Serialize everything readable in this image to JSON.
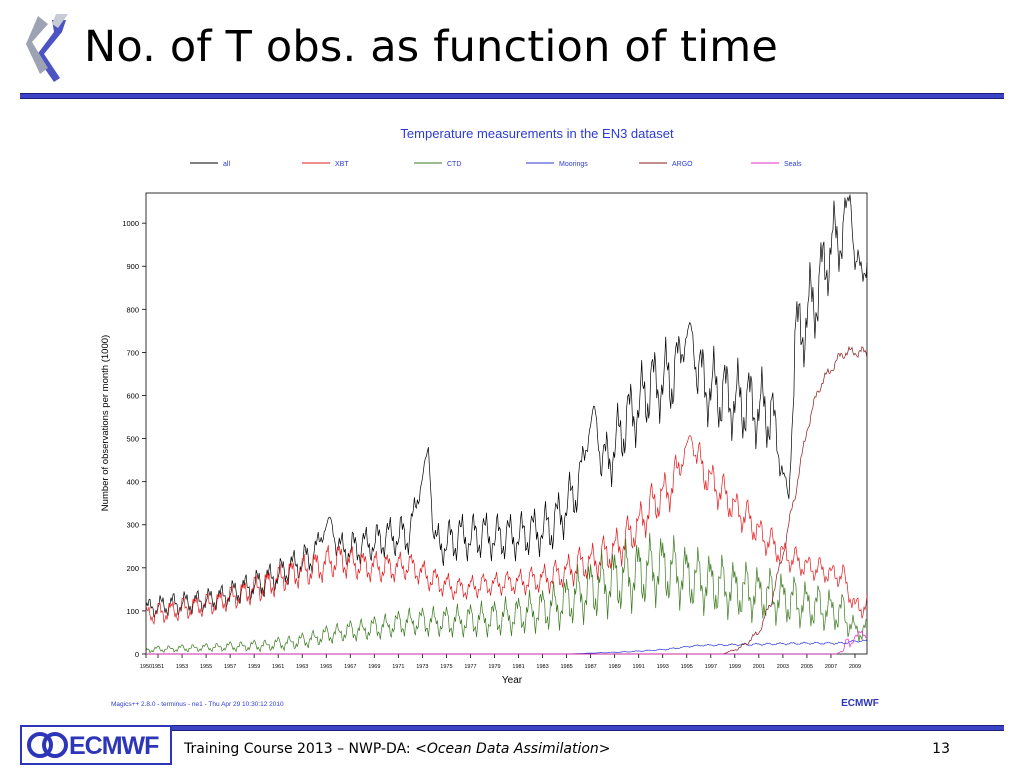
{
  "slide": {
    "title": "No. of T obs. as function of time",
    "footer_prefix": "Training Course 2013 – NWP-DA: <",
    "footer_italic": "Ocean Data Assimilation",
    "footer_suffix": ">",
    "page_number": "13",
    "footer_logo_text": "ECMWF"
  },
  "chart_data": {
    "type": "line",
    "title": "Temperature measurements in the EN3 dataset",
    "xlabel": "Year",
    "ylabel": "Number of observations per month (1000)",
    "xlim": [
      1950,
      2010
    ],
    "ylim": [
      0,
      1070
    ],
    "xticks": [
      "1950",
      "1951",
      "1953",
      "1955",
      "1957",
      "1959",
      "1961",
      "1963",
      "1965",
      "1967",
      "1969",
      "1971",
      "1973",
      "1975",
      "1977",
      "1979",
      "1981",
      "1983",
      "1985",
      "1987",
      "1989",
      "1991",
      "1993",
      "1995",
      "1997",
      "1999",
      "2001",
      "2003",
      "2005",
      "2007",
      "2009"
    ],
    "yticks": [
      0,
      100,
      200,
      300,
      400,
      500,
      600,
      700,
      800,
      900,
      1000
    ],
    "legend_position": "top",
    "grid": false,
    "credit": "Magics++ 2.8.0 - terminus - ne1 - Thu Apr 29 10:30:12 2010",
    "watermark": "ECMWF",
    "series": [
      {
        "name": "all",
        "color": "#000000",
        "x": [
          1950,
          1952,
          1954,
          1956,
          1958,
          1960,
          1962,
          1964,
          1965.3,
          1966,
          1968,
          1970,
          1972,
          1973.5,
          1974,
          1976,
          1978,
          1980,
          1982,
          1984,
          1986,
          1987.3,
          1988,
          1990,
          1992,
          1994,
          1995.3,
          1996,
          1998,
          2000,
          2002,
          2003.5,
          2004,
          2006,
          2007,
          2008,
          2008.6,
          2009
        ],
        "y": [
          105,
          115,
          120,
          130,
          150,
          170,
          200,
          230,
          320,
          240,
          250,
          270,
          280,
          480,
          250,
          270,
          275,
          270,
          280,
          300,
          390,
          580,
          430,
          540,
          620,
          650,
          770,
          640,
          600,
          580,
          560,
          360,
          720,
          850,
          950,
          980,
          1070,
          900
        ],
        "amplitude": [
          25,
          30,
          30,
          30,
          35,
          40,
          40,
          45,
          0,
          45,
          45,
          50,
          55,
          0,
          55,
          60,
          60,
          60,
          60,
          70,
          70,
          0,
          80,
          90,
          95,
          100,
          0,
          100,
          100,
          100,
          100,
          0,
          110,
          110,
          100,
          90,
          0,
          40
        ]
      },
      {
        "name": "XBT",
        "color": "#e41a1c",
        "x": [
          1950,
          1952,
          1954,
          1956,
          1958,
          1960,
          1962,
          1964,
          1966,
          1968,
          1970,
          1972,
          1974,
          1976,
          1978,
          1980,
          1982,
          1984,
          1986,
          1988,
          1990,
          1992,
          1994,
          1995.3,
          1996,
          1998,
          2000,
          2002,
          2004,
          2006,
          2008,
          2009
        ],
        "y": [
          90,
          100,
          110,
          120,
          140,
          160,
          185,
          200,
          220,
          205,
          200,
          205,
          170,
          150,
          160,
          165,
          170,
          180,
          205,
          225,
          265,
          340,
          400,
          510,
          440,
          370,
          315,
          255,
          215,
          195,
          180,
          110
        ],
        "amplitude": [
          25,
          30,
          30,
          30,
          35,
          40,
          40,
          45,
          45,
          40,
          40,
          35,
          35,
          30,
          30,
          30,
          35,
          40,
          45,
          50,
          55,
          55,
          60,
          0,
          55,
          50,
          45,
          40,
          35,
          30,
          30,
          30
        ]
      },
      {
        "name": "CTD",
        "color": "#3b7a1f",
        "x": [
          1950,
          1955,
          1960,
          1963,
          1966,
          1969,
          1972,
          1975,
          1978,
          1981,
          1984,
          1987,
          1990,
          1993,
          1996,
          1999,
          2002,
          2005,
          2008,
          2009
        ],
        "y": [
          10,
          15,
          20,
          30,
          50,
          60,
          75,
          75,
          80,
          90,
          110,
          150,
          180,
          200,
          170,
          150,
          135,
          115,
          95,
          55
        ],
        "amplitude": [
          8,
          10,
          15,
          20,
          25,
          30,
          35,
          40,
          45,
          50,
          60,
          80,
          90,
          90,
          80,
          75,
          70,
          60,
          50,
          30
        ]
      },
      {
        "name": "Moorings",
        "color": "#2b3bd6",
        "x": [
          1950,
          1985,
          1990,
          1993,
          1996,
          2000,
          2005,
          2008,
          2009
        ],
        "y": [
          0,
          0,
          5,
          10,
          20,
          22,
          25,
          25,
          30
        ],
        "amplitude": [
          0,
          0,
          1,
          2,
          2,
          3,
          3,
          3,
          3
        ]
      },
      {
        "name": "ARGO",
        "color": "#8b1a1a",
        "x": [
          1950,
          1998,
          1999.5,
          2001,
          2002,
          2003,
          2004,
          2005,
          2006,
          2007,
          2008,
          2009
        ],
        "y": [
          0,
          0,
          15,
          50,
          120,
          230,
          370,
          520,
          620,
          660,
          700,
          700
        ],
        "amplitude": [
          0,
          0,
          5,
          10,
          12,
          15,
          15,
          15,
          15,
          15,
          15,
          15
        ]
      },
      {
        "name": "Seals",
        "color": "#e52cc8",
        "x": [
          1950,
          2007.5,
          2008,
          2008.3,
          2008.6,
          2009
        ],
        "y": [
          0,
          0,
          10,
          35,
          15,
          45
        ],
        "amplitude": [
          0,
          0,
          5,
          10,
          8,
          10
        ]
      }
    ]
  }
}
